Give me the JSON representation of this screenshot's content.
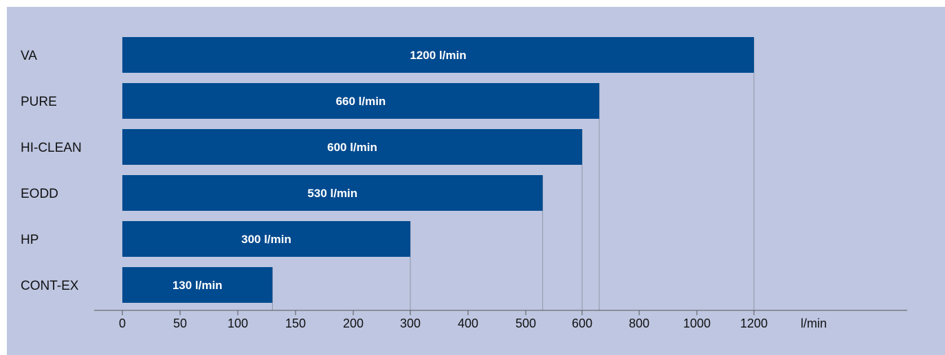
{
  "chart_data": {
    "type": "bar",
    "orientation": "horizontal",
    "categories": [
      "VA",
      "PURE",
      "HI-CLEAN",
      "EODD",
      "HP",
      "CONT-EX"
    ],
    "values": [
      1200,
      660,
      600,
      530,
      300,
      130
    ],
    "value_labels": [
      "1200 l/min",
      "660 l/min",
      "600 l/min",
      "530 l/min",
      "300 l/min",
      "130 l/min"
    ],
    "x_ticks": [
      "0",
      "50",
      "100",
      "150",
      "200",
      "300",
      "400",
      "500",
      "600",
      "800",
      "1000",
      "1200"
    ],
    "x_unit": "l/min",
    "xlim": [
      0,
      1200
    ],
    "grid": false,
    "legend": "none",
    "colors": {
      "panel": "#bec6e1",
      "bar": "#004a8f",
      "bar_text": "#ffffff",
      "axis": "#555555",
      "drop_line": "#8f96a6",
      "text": "#111111"
    }
  }
}
